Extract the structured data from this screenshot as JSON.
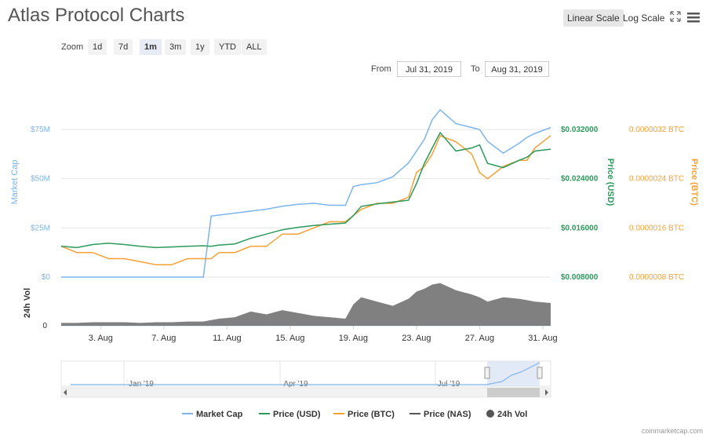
{
  "header": {
    "title": "Atlas Protocol Charts",
    "linear_scale": "Linear Scale",
    "log_scale": "Log Scale"
  },
  "zoom": {
    "label": "Zoom",
    "buttons": [
      "1d",
      "7d",
      "1m",
      "3m",
      "1y",
      "YTD",
      "ALL"
    ],
    "active": "1m"
  },
  "range": {
    "from_label": "From",
    "from_value": "Jul 31, 2019",
    "to_label": "To",
    "to_value": "Aug 31, 2019"
  },
  "credit": "coinmarketcap.com",
  "colors": {
    "market_cap": "#7cb5ec",
    "price_usd": "#2b9a5b",
    "price_btc": "#f7a035",
    "price_nas": "#555555",
    "volume": "#555555"
  },
  "chart_data": {
    "type": "line",
    "x_ticks": [
      "3. Aug",
      "7. Aug",
      "11. Aug",
      "15. Aug",
      "19. Aug",
      "23. Aug",
      "27. Aug",
      "31. Aug"
    ],
    "x_range": [
      "Jul 31, 2019",
      "Aug 31, 2019"
    ],
    "axes": {
      "market_cap": {
        "label": "Market Cap",
        "ticks": [
          "$0",
          "$25M",
          "$50M",
          "$75M"
        ],
        "range": [
          0,
          75000000
        ]
      },
      "price_usd": {
        "label": "Price (USD)",
        "ticks": [
          "$0.008000",
          "$0.016000",
          "$0.024000",
          "$0.032000"
        ],
        "range": [
          0.008,
          0.032
        ]
      },
      "price_btc": {
        "label": "Price (BTC)",
        "ticks": [
          "0.0000008 BTC",
          "0.0000016 BTC",
          "0.0000024 BTC",
          "0.0000032 BTC"
        ],
        "range": [
          8e-07,
          3.2e-06
        ]
      },
      "volume": {
        "label": "24h Vol",
        "ticks": [
          "0"
        ]
      }
    },
    "x_days": [
      0,
      1,
      2,
      3,
      4,
      5,
      6,
      7,
      8,
      9,
      9.5,
      10,
      11,
      12,
      13,
      14,
      15,
      16,
      17,
      18,
      18.5,
      19,
      20,
      21,
      22,
      22.5,
      23,
      23.5,
      24,
      25,
      26,
      26.5,
      27,
      28,
      29,
      29.5,
      30,
      31
    ],
    "series": [
      {
        "name": "Market Cap",
        "values": [
          0,
          0,
          0,
          0,
          0,
          0,
          0,
          0,
          0,
          0,
          31000000,
          31500000,
          32500000,
          33500000,
          34500000,
          36000000,
          37000000,
          37500000,
          36500000,
          36500000,
          46000000,
          47000000,
          48000000,
          51000000,
          58000000,
          64000000,
          70000000,
          80000000,
          85000000,
          78000000,
          76000000,
          75000000,
          69000000,
          63000000,
          68000000,
          71000000,
          73000000,
          76000000
        ]
      },
      {
        "name": "Price (USD)",
        "values": [
          0.013,
          0.0128,
          0.0133,
          0.0135,
          0.0133,
          0.013,
          0.0128,
          0.0129,
          0.013,
          0.0131,
          0.013,
          0.0132,
          0.0134,
          0.0143,
          0.015,
          0.0157,
          0.0161,
          0.0164,
          0.0166,
          0.0168,
          0.018,
          0.0195,
          0.0199,
          0.0202,
          0.0205,
          0.0232,
          0.0265,
          0.029,
          0.0315,
          0.0285,
          0.029,
          0.0295,
          0.0265,
          0.0258,
          0.027,
          0.0275,
          0.0285,
          0.0288
        ]
      },
      {
        "name": "Price (BTC)",
        "values": [
          1.3e-06,
          1.2e-06,
          1.2e-06,
          1.1e-06,
          1.1e-06,
          1.05e-06,
          1e-06,
          1e-06,
          1.1e-06,
          1.1e-06,
          1.1e-06,
          1.2e-06,
          1.2e-06,
          1.3e-06,
          1.3e-06,
          1.5e-06,
          1.5e-06,
          1.6e-06,
          1.7e-06,
          1.7e-06,
          1.8e-06,
          1.9e-06,
          2e-06,
          2e-06,
          2.1e-06,
          2.5e-06,
          2.6e-06,
          2.8e-06,
          3.1e-06,
          3e-06,
          2.8e-06,
          2.5e-06,
          2.4e-06,
          2.6e-06,
          2.7e-06,
          2.7e-06,
          2.9e-06,
          3.1e-06
        ]
      },
      {
        "name": "24h Vol",
        "values": [
          4,
          4,
          5,
          5,
          5,
          4,
          5,
          5,
          6,
          6,
          8,
          10,
          12,
          20,
          16,
          22,
          18,
          14,
          12,
          10,
          30,
          40,
          34,
          28,
          38,
          48,
          52,
          58,
          60,
          50,
          44,
          40,
          34,
          40,
          38,
          36,
          34,
          32
        ]
      }
    ],
    "legend": [
      "Market Cap",
      "Price (USD)",
      "Price (BTC)",
      "Price (NAS)",
      "24h Vol"
    ],
    "navigator_ticks": [
      "Jan '19",
      "Apr '19",
      "Jul '19"
    ]
  }
}
